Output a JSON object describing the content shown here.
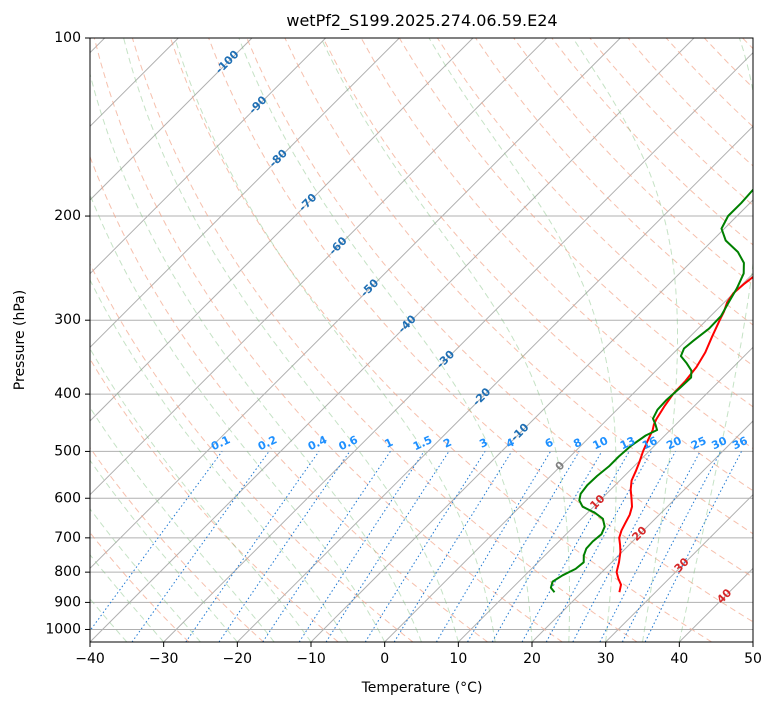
{
  "chart_data": {
    "type": "line",
    "subtype": "skew-T log-P diagram",
    "title": "wetPf2_S199.2025.274.06.59.E24",
    "xlabel": "Temperature (°C)",
    "ylabel": "Pressure (hPa)",
    "xlim": [
      -40,
      50
    ],
    "ylim": [
      1050,
      100
    ],
    "x_ticks": [
      -40,
      -30,
      -20,
      -10,
      0,
      10,
      20,
      30,
      40,
      50
    ],
    "x_tick_labels": [
      "−40",
      "−30",
      "−20",
      "−10",
      "0",
      "10",
      "20",
      "30",
      "40",
      "50"
    ],
    "y_ticks": [
      100,
      200,
      300,
      400,
      500,
      600,
      700,
      800,
      900,
      1000
    ],
    "y_tick_labels": [
      "100",
      "200",
      "300",
      "400",
      "500",
      "600",
      "700",
      "800",
      "900",
      "1000"
    ],
    "isotherm_labels": [
      {
        "t": -100,
        "p": 110,
        "text": "-100"
      },
      {
        "t": -90,
        "p": 130,
        "text": "-90"
      },
      {
        "t": -80,
        "p": 160,
        "text": "-80"
      },
      {
        "t": -70,
        "p": 190,
        "text": "-70"
      },
      {
        "t": -60,
        "p": 225,
        "text": "-60"
      },
      {
        "t": -50,
        "p": 265,
        "text": "-50"
      },
      {
        "t": -40,
        "p": 305,
        "text": "-40"
      },
      {
        "t": -30,
        "p": 350,
        "text": "-30"
      },
      {
        "t": -20,
        "p": 405,
        "text": "-20"
      },
      {
        "t": -10,
        "p": 465,
        "text": "-10"
      },
      {
        "t": 0,
        "p": 530,
        "text": "0"
      },
      {
        "t": 10,
        "p": 610,
        "text": "10"
      },
      {
        "t": 20,
        "p": 690,
        "text": "20"
      },
      {
        "t": 30,
        "p": 780,
        "text": "30"
      },
      {
        "t": 40,
        "p": 880,
        "text": "40"
      }
    ],
    "mixing_ratios": [
      "0.1",
      "0.2",
      "0.4",
      "0.6",
      "1",
      "1.5",
      "2",
      "3",
      "4",
      "6",
      "8",
      "10",
      "13",
      "16",
      "20",
      "25",
      "30",
      "36"
    ],
    "series": [
      {
        "name": "Temperature",
        "color": "#ff0000",
        "points": [
          {
            "p": 865,
            "t": 25.1
          },
          {
            "p": 840,
            "t": 24.3
          },
          {
            "p": 820,
            "t": 23.1
          },
          {
            "p": 800,
            "t": 22.0
          },
          {
            "p": 770,
            "t": 21.0
          },
          {
            "p": 740,
            "t": 19.8
          },
          {
            "p": 720,
            "t": 18.8
          },
          {
            "p": 700,
            "t": 17.7
          },
          {
            "p": 680,
            "t": 17.0
          },
          {
            "p": 660,
            "t": 16.5
          },
          {
            "p": 640,
            "t": 16.0
          },
          {
            "p": 620,
            "t": 15.2
          },
          {
            "p": 600,
            "t": 14.0
          },
          {
            "p": 580,
            "t": 12.7
          },
          {
            "p": 560,
            "t": 11.6
          },
          {
            "p": 540,
            "t": 10.9
          },
          {
            "p": 520,
            "t": 10.1
          },
          {
            "p": 500,
            "t": 9.2
          },
          {
            "p": 480,
            "t": 8.4
          },
          {
            "p": 460,
            "t": 7.6
          },
          {
            "p": 450,
            "t": 7.0
          },
          {
            "p": 440,
            "t": 6.6
          },
          {
            "p": 420,
            "t": 6.0
          },
          {
            "p": 400,
            "t": 5.5
          },
          {
            "p": 380,
            "t": 5.4
          },
          {
            "p": 360,
            "t": 5.0
          },
          {
            "p": 340,
            "t": 4.2
          },
          {
            "p": 320,
            "t": 3.0
          },
          {
            "p": 300,
            "t": 1.8
          },
          {
            "p": 290,
            "t": 1.2
          },
          {
            "p": 280,
            "t": 0.4
          },
          {
            "p": 270,
            "t": 0.0
          },
          {
            "p": 260,
            "t": 0.2
          },
          {
            "p": 250,
            "t": 0.6
          },
          {
            "p": 240,
            "t": 1.0
          },
          {
            "p": 230,
            "t": 1.5
          },
          {
            "p": 220,
            "t": 2.0
          },
          {
            "p": 210,
            "t": 2.8
          },
          {
            "p": 200,
            "t": 3.5
          },
          {
            "p": 190,
            "t": 4.1
          },
          {
            "p": 180,
            "t": 4.8
          },
          {
            "p": 170,
            "t": 6.1
          },
          {
            "p": 160,
            "t": 7.9
          },
          {
            "p": 150,
            "t": 10.3
          },
          {
            "p": 145,
            "t": 12.0
          },
          {
            "p": 140,
            "t": 13.0
          },
          {
            "p": 135,
            "t": 13.6
          },
          {
            "p": 130,
            "t": 13.8
          },
          {
            "p": 125,
            "t": 14.1
          },
          {
            "p": 120,
            "t": 14.6
          },
          {
            "p": 115,
            "t": 15.3
          },
          {
            "p": 110,
            "t": 16.2
          },
          {
            "p": 105,
            "t": 17.2
          },
          {
            "p": 100,
            "t": 18.0
          }
        ]
      },
      {
        "name": "Dewpoint",
        "color": "#008000",
        "points": [
          {
            "p": 865,
            "t": 16.3
          },
          {
            "p": 850,
            "t": 15.2
          },
          {
            "p": 830,
            "t": 14.6
          },
          {
            "p": 810,
            "t": 15.1
          },
          {
            "p": 790,
            "t": 16.0
          },
          {
            "p": 770,
            "t": 16.2
          },
          {
            "p": 750,
            "t": 15.3
          },
          {
            "p": 730,
            "t": 14.7
          },
          {
            "p": 710,
            "t": 14.6
          },
          {
            "p": 690,
            "t": 14.8
          },
          {
            "p": 670,
            "t": 14.2
          },
          {
            "p": 650,
            "t": 12.9
          },
          {
            "p": 635,
            "t": 11.0
          },
          {
            "p": 620,
            "t": 8.5
          },
          {
            "p": 605,
            "t": 7.2
          },
          {
            "p": 590,
            "t": 6.5
          },
          {
            "p": 570,
            "t": 6.2
          },
          {
            "p": 550,
            "t": 6.3
          },
          {
            "p": 530,
            "t": 6.6
          },
          {
            "p": 510,
            "t": 6.6
          },
          {
            "p": 490,
            "t": 6.8
          },
          {
            "p": 470,
            "t": 7.4
          },
          {
            "p": 460,
            "t": 8.2
          },
          {
            "p": 450,
            "t": 7.2
          },
          {
            "p": 440,
            "t": 6.1
          },
          {
            "p": 425,
            "t": 5.5
          },
          {
            "p": 410,
            "t": 5.4
          },
          {
            "p": 390,
            "t": 5.6
          },
          {
            "p": 375,
            "t": 5.7
          },
          {
            "p": 365,
            "t": 4.8
          },
          {
            "p": 355,
            "t": 3.2
          },
          {
            "p": 345,
            "t": 1.4
          },
          {
            "p": 335,
            "t": 0.8
          },
          {
            "p": 325,
            "t": 1.0
          },
          {
            "p": 310,
            "t": 1.5
          },
          {
            "p": 295,
            "t": 1.4
          },
          {
            "p": 280,
            "t": 0.6
          },
          {
            "p": 265,
            "t": -0.2
          },
          {
            "p": 250,
            "t": -1.3
          },
          {
            "p": 240,
            "t": -2.7
          },
          {
            "p": 230,
            "t": -5.0
          },
          {
            "p": 220,
            "t": -8.2
          },
          {
            "p": 210,
            "t": -10.4
          },
          {
            "p": 200,
            "t": -11.2
          },
          {
            "p": 190,
            "t": -11.2
          },
          {
            "p": 180,
            "t": -11.4
          },
          {
            "p": 170,
            "t": -12.3
          },
          {
            "p": 160,
            "t": -13.8
          },
          {
            "p": 155,
            "t": -15.3
          },
          {
            "p": 150,
            "t": -16.7
          },
          {
            "p": 145,
            "t": -17.4
          },
          {
            "p": 140,
            "t": -17.5
          },
          {
            "p": 135,
            "t": -16.9
          },
          {
            "p": 125,
            "t": -15.5
          },
          {
            "p": 115,
            "t": -13.8
          },
          {
            "p": 105,
            "t": -11.9
          },
          {
            "p": 100,
            "t": -11.0
          }
        ]
      }
    ]
  }
}
